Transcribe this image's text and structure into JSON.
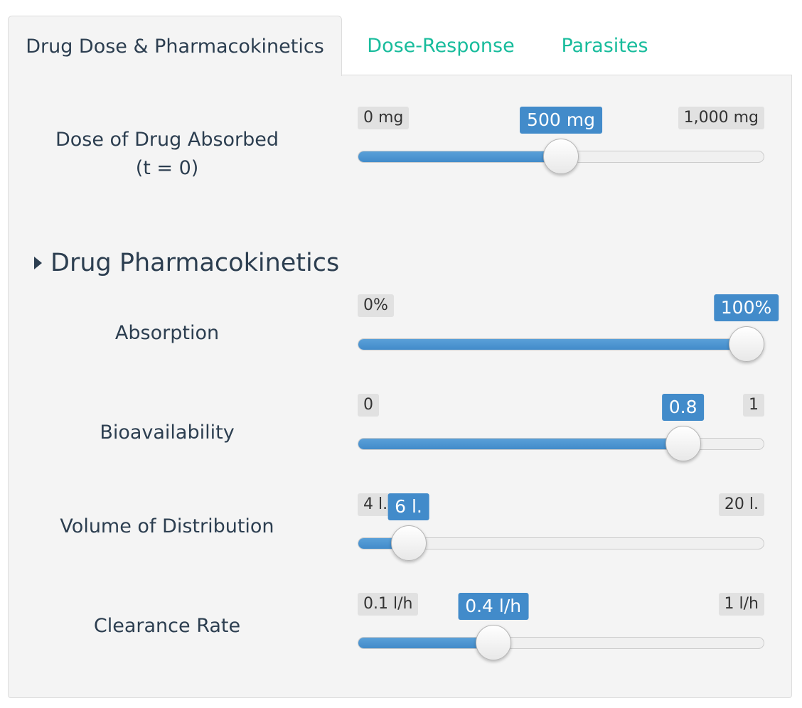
{
  "tabs": [
    {
      "label": "Drug Dose & Pharmacokinetics",
      "active": true
    },
    {
      "label": "Dose-Response",
      "active": false
    },
    {
      "label": "Parasites",
      "active": false
    }
  ],
  "section_title": "Drug Pharmacokinetics",
  "sliders": {
    "dose": {
      "label_line1": "Dose of Drug Absorbed",
      "label_line2": "(t = 0)",
      "min_label": "0 mg",
      "max_label": "1,000 mg",
      "value_label": "500 mg",
      "min": 0,
      "max": 1000,
      "value": 500
    },
    "absorption": {
      "label": "Absorption",
      "min_label": "0%",
      "max_label": "100%",
      "value_label": "100%",
      "min": 0,
      "max": 100,
      "value": 100
    },
    "bioavailability": {
      "label": "Bioavailability",
      "min_label": "0",
      "max_label": "1",
      "value_label": "0.8",
      "min": 0,
      "max": 1,
      "value": 0.8
    },
    "volume": {
      "label": "Volume of Distribution",
      "min_label": "4 l.",
      "max_label": "20 l.",
      "value_label": "6 l.",
      "min": 4,
      "max": 20,
      "value": 6
    },
    "clearance": {
      "label": "Clearance Rate",
      "min_label": "0.1 l/h",
      "max_label": "1 l/h",
      "value_label": "0.4 l/h",
      "min": 0.1,
      "max": 1,
      "value": 0.4
    }
  },
  "colors": {
    "accent": "#428bca",
    "tab_inactive": "#18bc9c",
    "text": "#2c3e50",
    "panel_bg": "#f4f4f4"
  }
}
